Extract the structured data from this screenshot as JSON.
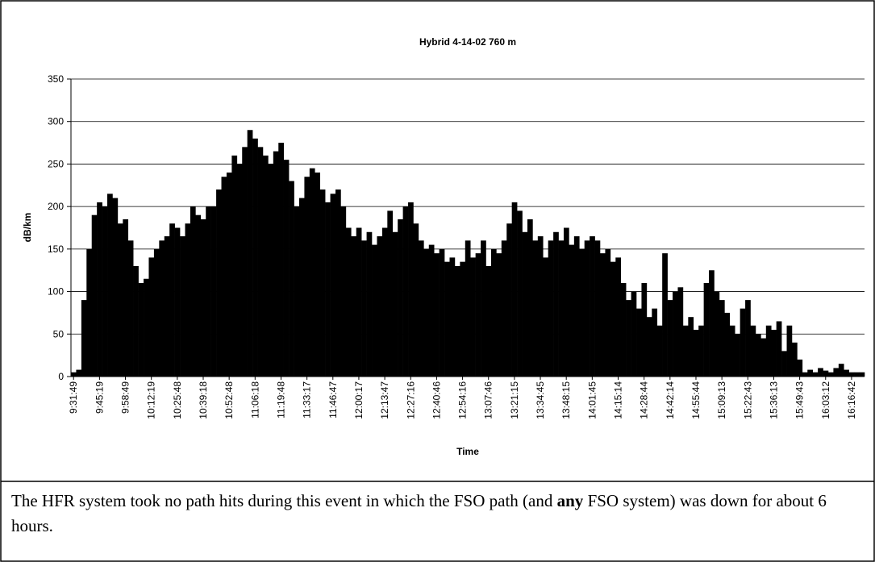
{
  "chart_data": {
    "type": "bar",
    "title": "Hybrid 4-14-02 760 m",
    "x_label": "Time",
    "y_label": "dB/km",
    "categories": [
      "9:31:49",
      null,
      null,
      null,
      null,
      "9:45:19",
      null,
      null,
      null,
      null,
      "9:58:49",
      null,
      null,
      null,
      null,
      "10:12:19",
      null,
      null,
      null,
      null,
      "10:25:48",
      null,
      null,
      null,
      null,
      "10:39:18",
      null,
      null,
      null,
      null,
      "10:52:48",
      null,
      null,
      null,
      null,
      "11:06:18",
      null,
      null,
      null,
      null,
      "11:19:48",
      null,
      null,
      null,
      null,
      "11:33:17",
      null,
      null,
      null,
      null,
      "11:46:47",
      null,
      null,
      null,
      null,
      "12:00:17",
      null,
      null,
      null,
      null,
      "12:13:47",
      null,
      null,
      null,
      null,
      "12:27:16",
      null,
      null,
      null,
      null,
      "12:40:46",
      null,
      null,
      null,
      null,
      "12:54:16",
      null,
      null,
      null,
      null,
      "13:07:46",
      null,
      null,
      null,
      null,
      "13:21:15",
      null,
      null,
      null,
      null,
      "13:34:45",
      null,
      null,
      null,
      null,
      "13:48:15",
      null,
      null,
      null,
      null,
      "14:01:45",
      null,
      null,
      null,
      null,
      "14:15:14",
      null,
      null,
      null,
      null,
      "14:28:44",
      null,
      null,
      null,
      null,
      "14:42:14",
      null,
      null,
      null,
      null,
      "14:55:44",
      null,
      null,
      null,
      null,
      "15:09:13",
      null,
      null,
      null,
      null,
      "15:22:43",
      null,
      null,
      null,
      null,
      "15:36:13",
      null,
      null,
      null,
      null,
      "15:49:43",
      null,
      null,
      null,
      null,
      "16:03:12",
      null,
      null,
      null,
      null,
      "16:16:42",
      null,
      null
    ],
    "values": [
      5,
      8,
      90,
      150,
      190,
      205,
      200,
      215,
      210,
      180,
      185,
      160,
      130,
      110,
      115,
      140,
      150,
      160,
      165,
      180,
      175,
      165,
      180,
      200,
      190,
      185,
      200,
      200,
      220,
      235,
      240,
      260,
      250,
      270,
      290,
      280,
      270,
      260,
      250,
      265,
      275,
      255,
      230,
      200,
      210,
      235,
      245,
      240,
      220,
      205,
      215,
      220,
      200,
      175,
      165,
      175,
      160,
      170,
      155,
      165,
      175,
      195,
      170,
      185,
      200,
      205,
      180,
      160,
      150,
      155,
      145,
      150,
      135,
      140,
      130,
      135,
      160,
      140,
      145,
      160,
      130,
      150,
      145,
      160,
      180,
      205,
      195,
      170,
      185,
      160,
      165,
      140,
      160,
      170,
      160,
      175,
      155,
      165,
      150,
      160,
      165,
      160,
      145,
      150,
      135,
      140,
      110,
      90,
      100,
      80,
      110,
      70,
      80,
      60,
      145,
      90,
      100,
      105,
      60,
      70,
      55,
      60,
      110,
      125,
      100,
      90,
      75,
      60,
      50,
      80,
      90,
      60,
      50,
      45,
      60,
      55,
      65,
      30,
      60,
      40,
      20,
      5,
      8,
      5,
      10,
      7,
      5,
      10,
      15,
      8,
      5,
      5,
      5
    ],
    "color": "#000000",
    "ylim": [
      0,
      350
    ],
    "yticks": [
      0,
      50,
      100,
      150,
      200,
      250,
      300,
      350
    ],
    "grid": true
  },
  "caption": {
    "parts": [
      "The HFR system took no path hits during this event in which the FSO path (and ",
      "any",
      " FSO system) was down for about 6 hours."
    ]
  }
}
